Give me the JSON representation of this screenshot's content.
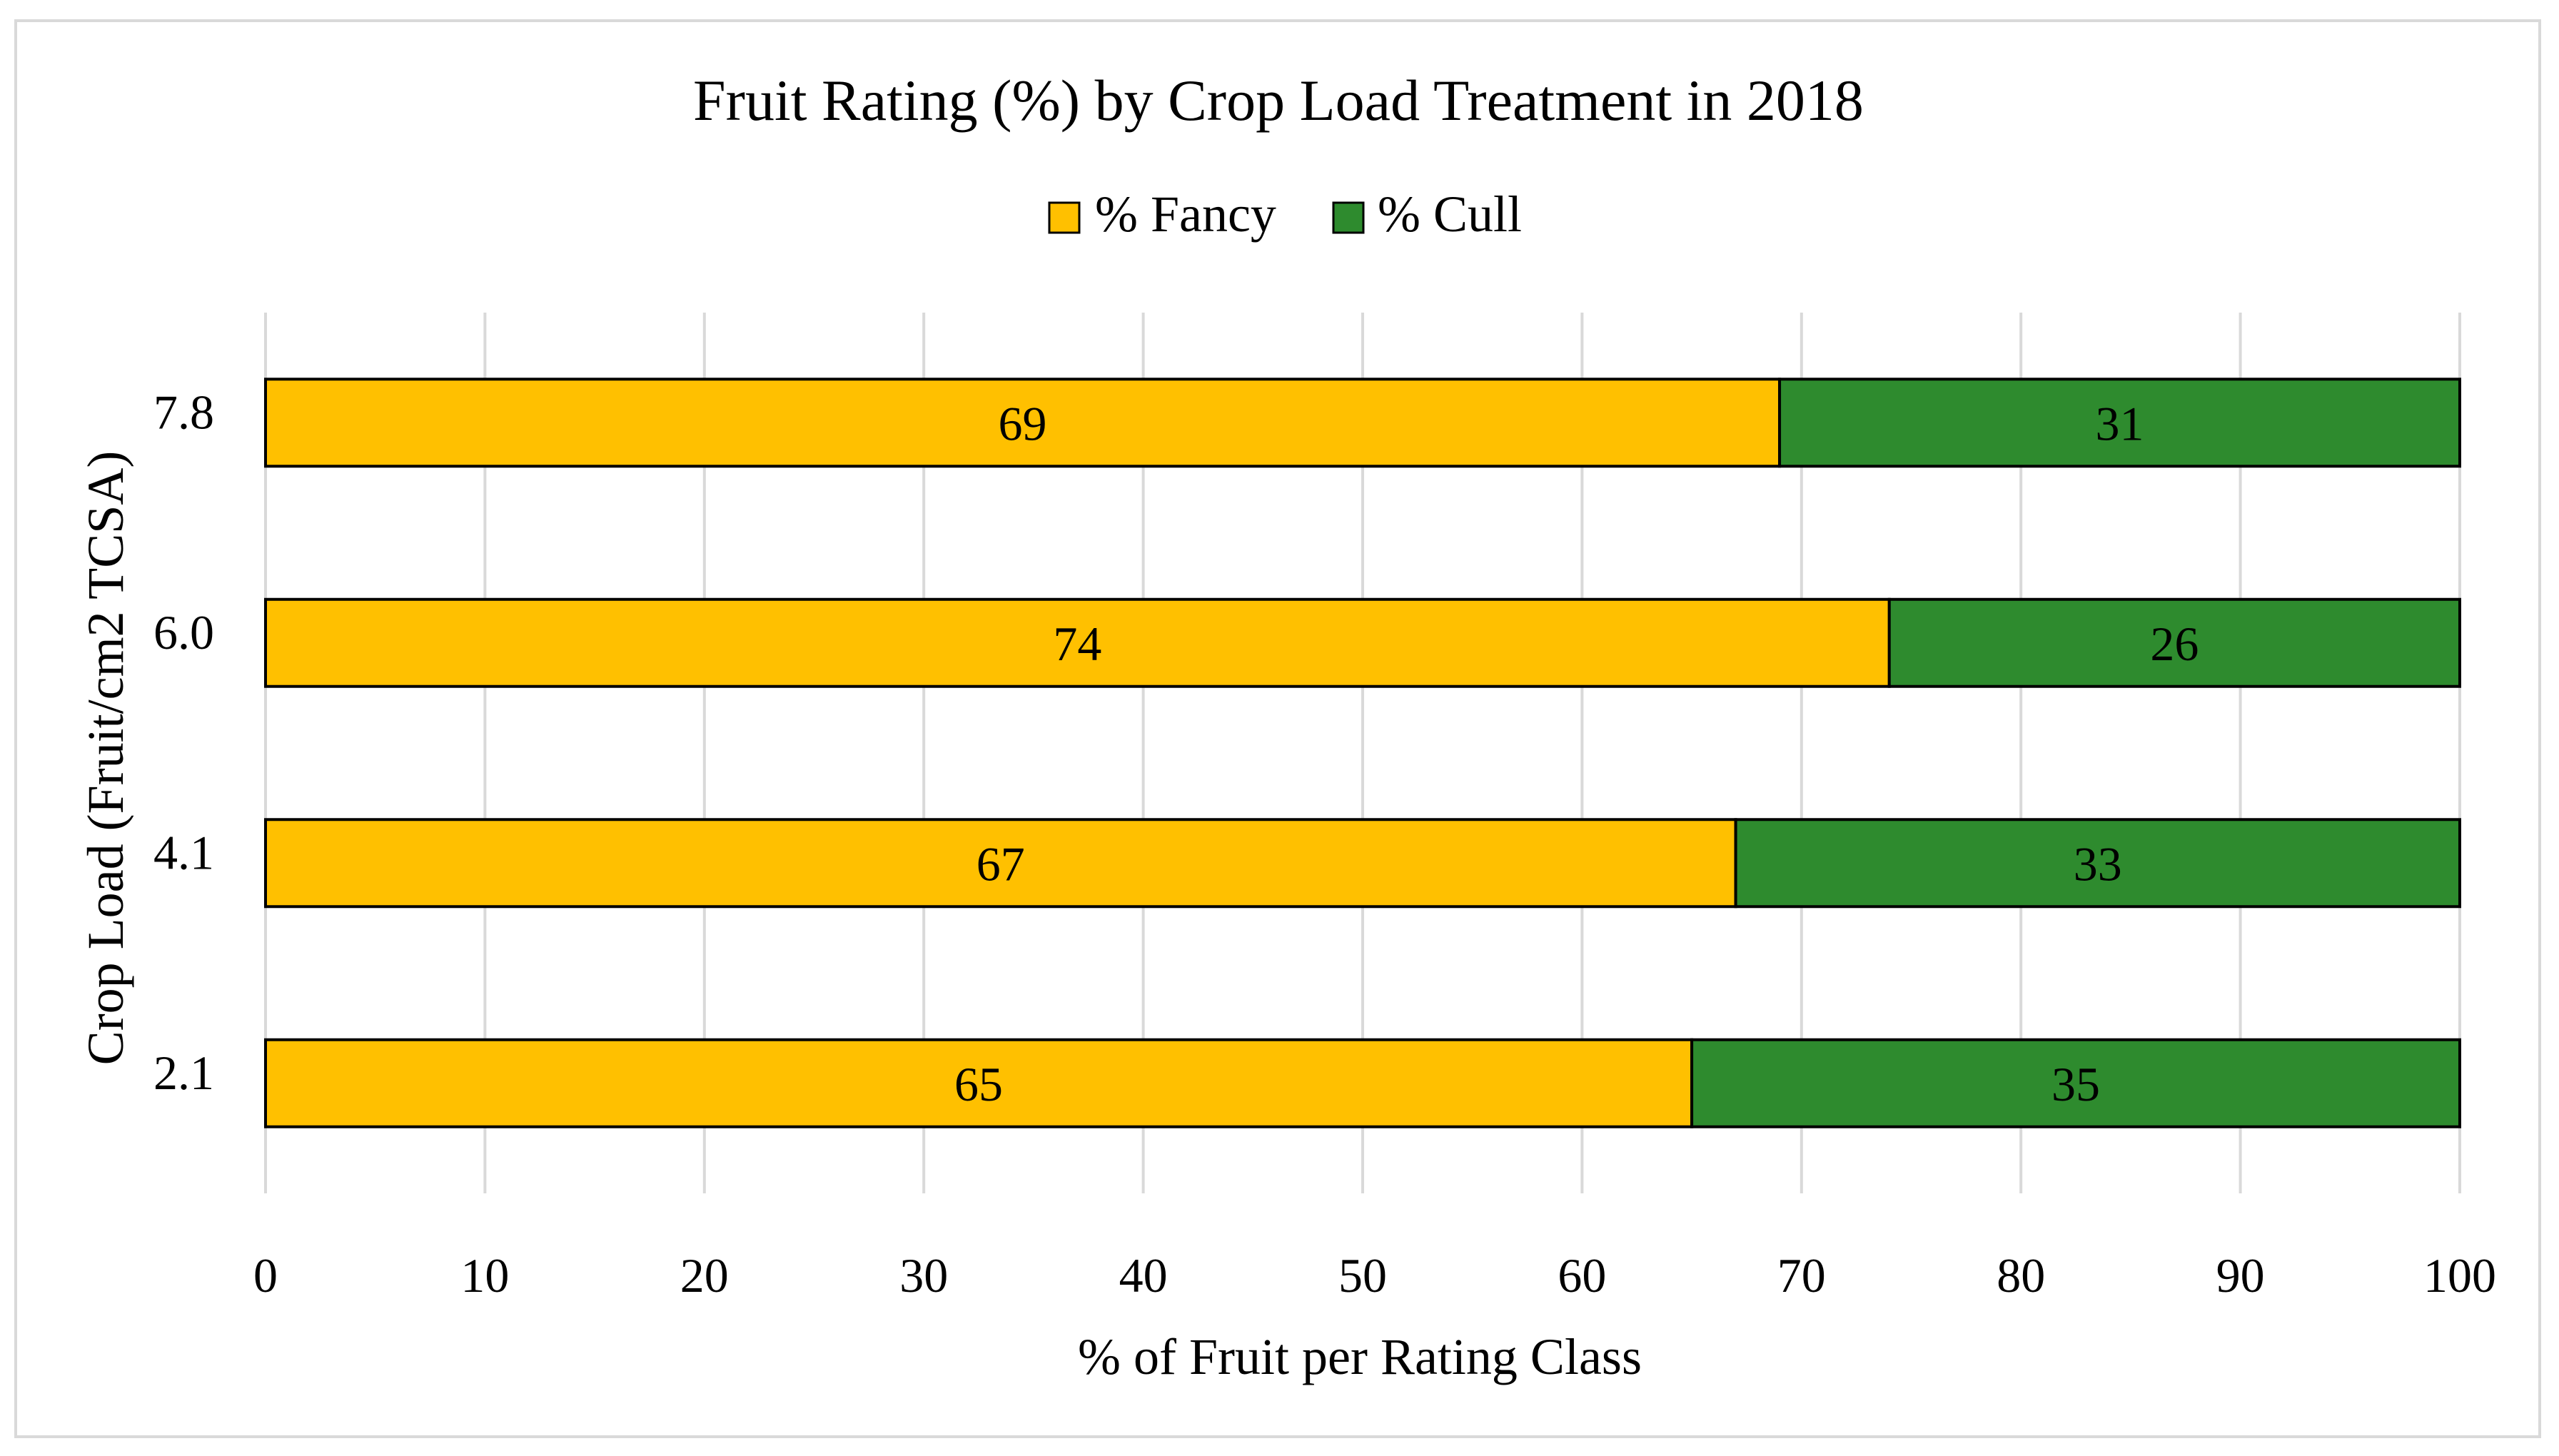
{
  "chart_data": {
    "type": "bar",
    "orientation": "horizontal",
    "stacked": true,
    "title": "Fruit Rating (%) by Crop Load Treatment in 2018",
    "xlabel": "% of Fruit per Rating Class",
    "ylabel": "Crop Load (Fruit/cm2 TCSA)",
    "categories": [
      "2.1",
      "4.1",
      "6.0",
      "7.8"
    ],
    "series": [
      {
        "name": "% Fancy",
        "color": "#FFC000",
        "values": [
          65,
          67,
          74,
          69
        ]
      },
      {
        "name": "% Cull",
        "color": "#2E8B2E",
        "values": [
          35,
          33,
          26,
          31
        ]
      }
    ],
    "xlim": [
      0,
      100
    ],
    "xticks": [
      "0",
      "10",
      "20",
      "30",
      "40",
      "50",
      "60",
      "70",
      "80",
      "90",
      "100"
    ],
    "grid": true,
    "legend_position": "top"
  }
}
